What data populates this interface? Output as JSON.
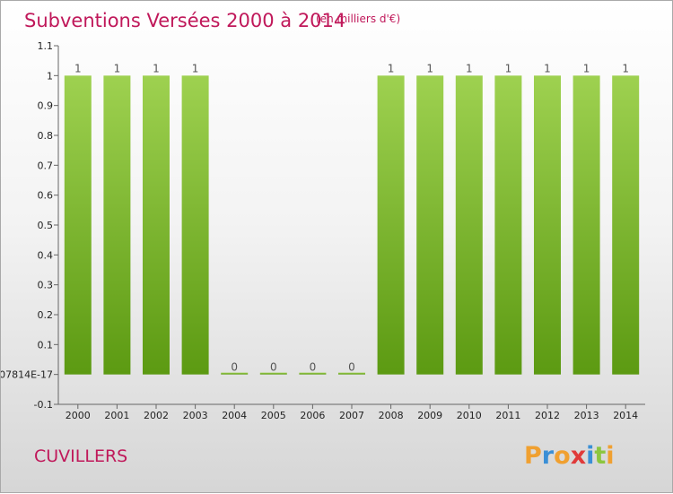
{
  "header": {
    "title": "Subventions Versées 2000 à 2014",
    "subtitle": "(en milliers d'€)"
  },
  "commune": "CUVILLERS",
  "brand": {
    "letters": [
      "P",
      "r",
      "o",
      "x",
      "i",
      "t",
      "i"
    ],
    "colors": [
      "#f0a030",
      "#3a8fd6",
      "#f0a030",
      "#e03a3a",
      "#3a8fd6",
      "#8cc63f",
      "#f0a030"
    ]
  },
  "colors": {
    "bar_top": "#9ed150",
    "bar_bottom": "#5c9a12",
    "axis": "#666666"
  },
  "chart_data": {
    "type": "bar",
    "categories": [
      "2000",
      "2001",
      "2002",
      "2003",
      "2004",
      "2005",
      "2006",
      "2007",
      "2008",
      "2009",
      "2010",
      "2011",
      "2012",
      "2013",
      "2014"
    ],
    "values": [
      1,
      1,
      1,
      1,
      0,
      0,
      0,
      0,
      1,
      1,
      1,
      1,
      1,
      1,
      1
    ],
    "data_labels": [
      "1",
      "1",
      "1",
      "1",
      "0",
      "0",
      "0",
      "0",
      "1",
      "1",
      "1",
      "1",
      "1",
      "1",
      "1"
    ],
    "ylim": [
      -0.1,
      1.1
    ],
    "yticks": [
      -0.1,
      0,
      0.1,
      0.2,
      0.3,
      0.4,
      0.5,
      0.6,
      0.7,
      0.8,
      0.9,
      1,
      1.1
    ],
    "ytick_labels": [
      "-0.1",
      "07814E-17",
      "0.1",
      "0.2",
      "0.3",
      "0.4",
      "0.5",
      "0.6",
      "0.7",
      "0.8",
      "0.9",
      "1",
      "1.1"
    ],
    "title": "Subventions Versées 2000 à 2014",
    "xlabel": "",
    "ylabel": "",
    "grid": false
  }
}
